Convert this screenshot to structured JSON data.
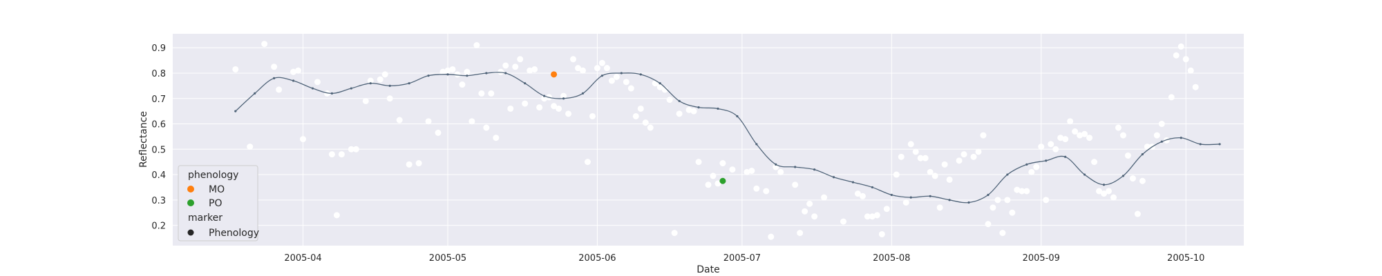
{
  "chart_data": {
    "type": "scatter",
    "title": "",
    "xlabel": "Date",
    "ylabel": "Reflectance",
    "xlim": [
      "2005-03-05",
      "2005-10-13"
    ],
    "ylim": [
      0.12,
      0.955
    ],
    "grid": true,
    "background_color": "#eaeaf2",
    "x_ticks": [
      "2005-04",
      "2005-05",
      "2005-06",
      "2005-07",
      "2005-08",
      "2005-09",
      "2005-10"
    ],
    "x_tick_labels": [
      "2005-04",
      "2005-05",
      "2005-06",
      "2005-07",
      "2005-08",
      "2005-09",
      "2005-10"
    ],
    "y_ticks": [
      0.2,
      0.3,
      0.4,
      0.5,
      0.6,
      0.7,
      0.8,
      0.9
    ],
    "y_tick_labels": [
      "0.2",
      "0.3",
      "0.4",
      "0.5",
      "0.6",
      "0.7",
      "0.8",
      "0.9"
    ],
    "observations": {
      "color": "#ffffff",
      "points": [
        [
          "2005-03-18",
          0.815
        ],
        [
          "2005-03-21",
          0.51
        ],
        [
          "2005-03-24",
          0.915
        ],
        [
          "2005-03-26",
          0.825
        ],
        [
          "2005-03-27",
          0.735
        ],
        [
          "2005-03-30",
          0.805
        ],
        [
          "2005-03-31",
          0.81
        ],
        [
          "2005-04-01",
          0.54
        ],
        [
          "2005-04-04",
          0.765
        ],
        [
          "2005-04-06",
          0.72
        ],
        [
          "2005-04-07",
          0.48
        ],
        [
          "2005-04-08",
          0.24
        ],
        [
          "2005-04-09",
          0.48
        ],
        [
          "2005-04-11",
          0.5
        ],
        [
          "2005-04-12",
          0.5
        ],
        [
          "2005-04-14",
          0.69
        ],
        [
          "2005-04-15",
          0.77
        ],
        [
          "2005-04-17",
          0.775
        ],
        [
          "2005-04-18",
          0.795
        ],
        [
          "2005-04-19",
          0.7
        ],
        [
          "2005-04-21",
          0.615
        ],
        [
          "2005-04-23",
          0.44
        ],
        [
          "2005-04-25",
          0.445
        ],
        [
          "2005-04-27",
          0.61
        ],
        [
          "2005-04-29",
          0.565
        ],
        [
          "2005-04-30",
          0.805
        ],
        [
          "2005-05-01",
          0.81
        ],
        [
          "2005-05-02",
          0.815
        ],
        [
          "2005-05-03",
          0.795
        ],
        [
          "2005-05-04",
          0.755
        ],
        [
          "2005-05-05",
          0.805
        ],
        [
          "2005-05-06",
          0.61
        ],
        [
          "2005-05-07",
          0.91
        ],
        [
          "2005-05-08",
          0.72
        ],
        [
          "2005-05-09",
          0.585
        ],
        [
          "2005-05-10",
          0.72
        ],
        [
          "2005-05-11",
          0.545
        ],
        [
          "2005-05-12",
          0.805
        ],
        [
          "2005-05-13",
          0.83
        ],
        [
          "2005-05-14",
          0.66
        ],
        [
          "2005-05-15",
          0.825
        ],
        [
          "2005-05-16",
          0.855
        ],
        [
          "2005-05-17",
          0.68
        ],
        [
          "2005-05-18",
          0.81
        ],
        [
          "2005-05-19",
          0.815
        ],
        [
          "2005-05-20",
          0.665
        ],
        [
          "2005-05-21",
          0.7
        ],
        [
          "2005-05-22",
          0.705
        ],
        [
          "2005-05-23",
          0.67
        ],
        [
          "2005-05-24",
          0.66
        ],
        [
          "2005-05-25",
          0.71
        ],
        [
          "2005-05-26",
          0.64
        ],
        [
          "2005-05-27",
          0.855
        ],
        [
          "2005-05-28",
          0.82
        ],
        [
          "2005-05-29",
          0.81
        ],
        [
          "2005-05-30",
          0.45
        ],
        [
          "2005-05-31",
          0.63
        ],
        [
          "2005-06-01",
          0.82
        ],
        [
          "2005-06-02",
          0.84
        ],
        [
          "2005-06-03",
          0.82
        ],
        [
          "2005-06-04",
          0.77
        ],
        [
          "2005-06-05",
          0.785
        ],
        [
          "2005-06-07",
          0.765
        ],
        [
          "2005-06-08",
          0.74
        ],
        [
          "2005-06-09",
          0.63
        ],
        [
          "2005-06-10",
          0.66
        ],
        [
          "2005-06-11",
          0.605
        ],
        [
          "2005-06-12",
          0.585
        ],
        [
          "2005-06-13",
          0.76
        ],
        [
          "2005-06-14",
          0.745
        ],
        [
          "2005-06-15",
          0.735
        ],
        [
          "2005-06-16",
          0.695
        ],
        [
          "2005-06-17",
          0.17
        ],
        [
          "2005-06-18",
          0.64
        ],
        [
          "2005-06-20",
          0.655
        ],
        [
          "2005-06-21",
          0.65
        ],
        [
          "2005-06-22",
          0.45
        ],
        [
          "2005-06-24",
          0.36
        ],
        [
          "2005-06-25",
          0.395
        ],
        [
          "2005-06-26",
          0.365
        ],
        [
          "2005-06-27",
          0.445
        ],
        [
          "2005-06-29",
          0.42
        ],
        [
          "2005-07-02",
          0.41
        ],
        [
          "2005-07-03",
          0.415
        ],
        [
          "2005-07-04",
          0.345
        ],
        [
          "2005-07-06",
          0.335
        ],
        [
          "2005-07-07",
          0.155
        ],
        [
          "2005-07-08",
          0.43
        ],
        [
          "2005-07-09",
          0.41
        ],
        [
          "2005-07-12",
          0.36
        ],
        [
          "2005-07-13",
          0.17
        ],
        [
          "2005-07-14",
          0.255
        ],
        [
          "2005-07-15",
          0.285
        ],
        [
          "2005-07-16",
          0.235
        ],
        [
          "2005-07-18",
          0.31
        ],
        [
          "2005-07-22",
          0.215
        ],
        [
          "2005-07-25",
          0.325
        ],
        [
          "2005-07-26",
          0.315
        ],
        [
          "2005-07-27",
          0.235
        ],
        [
          "2005-07-28",
          0.235
        ],
        [
          "2005-07-29",
          0.24
        ],
        [
          "2005-07-30",
          0.165
        ],
        [
          "2005-07-31",
          0.265
        ],
        [
          "2005-08-02",
          0.4
        ],
        [
          "2005-08-03",
          0.47
        ],
        [
          "2005-08-04",
          0.29
        ],
        [
          "2005-08-05",
          0.52
        ],
        [
          "2005-08-06",
          0.49
        ],
        [
          "2005-08-07",
          0.465
        ],
        [
          "2005-08-08",
          0.465
        ],
        [
          "2005-08-09",
          0.41
        ],
        [
          "2005-08-10",
          0.395
        ],
        [
          "2005-08-11",
          0.27
        ],
        [
          "2005-08-12",
          0.44
        ],
        [
          "2005-08-13",
          0.38
        ],
        [
          "2005-08-15",
          0.455
        ],
        [
          "2005-08-16",
          0.48
        ],
        [
          "2005-08-18",
          0.47
        ],
        [
          "2005-08-19",
          0.49
        ],
        [
          "2005-08-20",
          0.555
        ],
        [
          "2005-08-21",
          0.205
        ],
        [
          "2005-08-22",
          0.27
        ],
        [
          "2005-08-23",
          0.3
        ],
        [
          "2005-08-24",
          0.17
        ],
        [
          "2005-08-25",
          0.3
        ],
        [
          "2005-08-26",
          0.25
        ],
        [
          "2005-08-27",
          0.34
        ],
        [
          "2005-08-28",
          0.335
        ],
        [
          "2005-08-29",
          0.335
        ],
        [
          "2005-08-30",
          0.41
        ],
        [
          "2005-08-31",
          0.43
        ],
        [
          "2005-09-01",
          0.51
        ],
        [
          "2005-09-02",
          0.3
        ],
        [
          "2005-09-03",
          0.52
        ],
        [
          "2005-09-04",
          0.5
        ],
        [
          "2005-09-05",
          0.545
        ],
        [
          "2005-09-06",
          0.54
        ],
        [
          "2005-09-07",
          0.61
        ],
        [
          "2005-09-08",
          0.57
        ],
        [
          "2005-09-09",
          0.555
        ],
        [
          "2005-09-10",
          0.56
        ],
        [
          "2005-09-11",
          0.545
        ],
        [
          "2005-09-12",
          0.45
        ],
        [
          "2005-09-13",
          0.335
        ],
        [
          "2005-09-14",
          0.325
        ],
        [
          "2005-09-15",
          0.335
        ],
        [
          "2005-09-16",
          0.31
        ],
        [
          "2005-09-17",
          0.585
        ],
        [
          "2005-09-18",
          0.555
        ],
        [
          "2005-09-19",
          0.475
        ],
        [
          "2005-09-20",
          0.385
        ],
        [
          "2005-09-21",
          0.245
        ],
        [
          "2005-09-22",
          0.375
        ],
        [
          "2005-09-23",
          0.51
        ],
        [
          "2005-09-24",
          0.51
        ],
        [
          "2005-09-25",
          0.555
        ],
        [
          "2005-09-26",
          0.6
        ],
        [
          "2005-09-27",
          0.535
        ],
        [
          "2005-09-28",
          0.705
        ],
        [
          "2005-09-29",
          0.87
        ],
        [
          "2005-09-30",
          0.905
        ],
        [
          "2005-10-01",
          0.855
        ],
        [
          "2005-10-02",
          0.81
        ],
        [
          "2005-10-03",
          0.745
        ]
      ]
    },
    "smoothed": {
      "color": "#4f6378",
      "points": [
        [
          "2005-03-18",
          0.65
        ],
        [
          "2005-03-22",
          0.72
        ],
        [
          "2005-03-26",
          0.78
        ],
        [
          "2005-03-30",
          0.77
        ],
        [
          "2005-04-03",
          0.74
        ],
        [
          "2005-04-07",
          0.72
        ],
        [
          "2005-04-11",
          0.74
        ],
        [
          "2005-04-15",
          0.76
        ],
        [
          "2005-04-19",
          0.75
        ],
        [
          "2005-04-23",
          0.76
        ],
        [
          "2005-04-27",
          0.79
        ],
        [
          "2005-05-01",
          0.795
        ],
        [
          "2005-05-05",
          0.79
        ],
        [
          "2005-05-09",
          0.8
        ],
        [
          "2005-05-13",
          0.8
        ],
        [
          "2005-05-17",
          0.76
        ],
        [
          "2005-05-21",
          0.71
        ],
        [
          "2005-05-25",
          0.7
        ],
        [
          "2005-05-29",
          0.72
        ],
        [
          "2005-06-02",
          0.79
        ],
        [
          "2005-06-06",
          0.8
        ],
        [
          "2005-06-10",
          0.795
        ],
        [
          "2005-06-14",
          0.76
        ],
        [
          "2005-06-18",
          0.69
        ],
        [
          "2005-06-22",
          0.665
        ],
        [
          "2005-06-26",
          0.66
        ],
        [
          "2005-06-30",
          0.63
        ],
        [
          "2005-07-04",
          0.52
        ],
        [
          "2005-07-08",
          0.44
        ],
        [
          "2005-07-12",
          0.43
        ],
        [
          "2005-07-16",
          0.42
        ],
        [
          "2005-07-20",
          0.39
        ],
        [
          "2005-07-24",
          0.37
        ],
        [
          "2005-07-28",
          0.35
        ],
        [
          "2005-08-01",
          0.32
        ],
        [
          "2005-08-05",
          0.31
        ],
        [
          "2005-08-09",
          0.315
        ],
        [
          "2005-08-13",
          0.3
        ],
        [
          "2005-08-17",
          0.29
        ],
        [
          "2005-08-21",
          0.32
        ],
        [
          "2005-08-25",
          0.4
        ],
        [
          "2005-08-29",
          0.44
        ],
        [
          "2005-09-02",
          0.455
        ],
        [
          "2005-09-06",
          0.47
        ],
        [
          "2005-09-10",
          0.4
        ],
        [
          "2005-09-14",
          0.36
        ],
        [
          "2005-09-18",
          0.395
        ],
        [
          "2005-09-22",
          0.48
        ],
        [
          "2005-09-26",
          0.53
        ],
        [
          "2005-09-30",
          0.545
        ],
        [
          "2005-10-04",
          0.52
        ],
        [
          "2005-10-08",
          0.52
        ]
      ]
    },
    "phenology_points": [
      {
        "label": "MO",
        "color": "#ff7f0e",
        "x": "2005-05-23",
        "y": 0.795
      },
      {
        "label": "PO",
        "color": "#2ca02c",
        "x": "2005-06-27",
        "y": 0.375
      }
    ],
    "legend": {
      "placement": "lower-left",
      "title_phenology": "phenology",
      "items": [
        {
          "label": "MO",
          "color": "#ff7f0e"
        },
        {
          "label": "PO",
          "color": "#2ca02c"
        }
      ],
      "title_marker": "marker",
      "marker_items": [
        {
          "label": "Phenology",
          "color": "#262626"
        }
      ]
    }
  }
}
